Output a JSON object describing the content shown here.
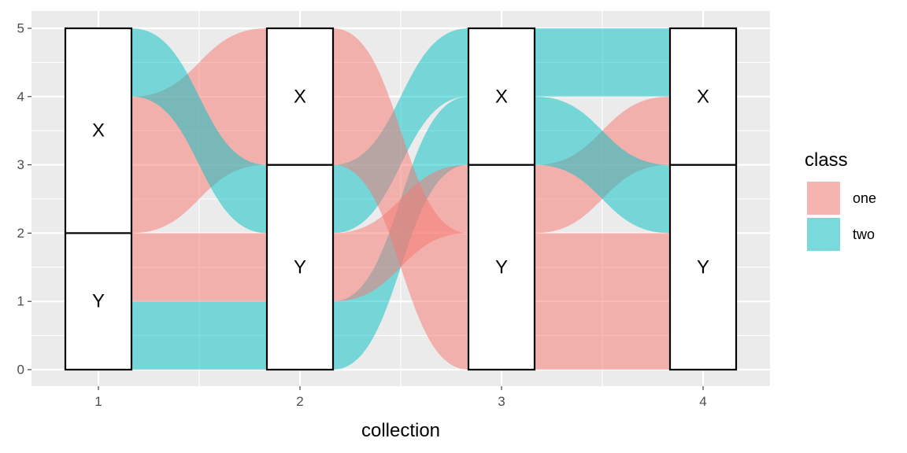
{
  "chart_data": {
    "type": "alluvial",
    "title": "",
    "xlabel": "collection",
    "ylabel": "",
    "x_categories": [
      "1",
      "2",
      "3",
      "4"
    ],
    "y_ticks": [
      0,
      1,
      2,
      3,
      4,
      5
    ],
    "ylim": [
      0,
      5
    ],
    "grid": true,
    "legend": {
      "title": "class",
      "position": "right",
      "entries": [
        {
          "name": "one",
          "color": "#F8766D"
        },
        {
          "name": "two",
          "color": "#00BFC4"
        }
      ]
    },
    "strata": [
      {
        "collection": "1",
        "items": [
          {
            "label": "Y",
            "from": 0,
            "to": 2
          },
          {
            "label": "X",
            "from": 2,
            "to": 5
          }
        ]
      },
      {
        "collection": "2",
        "items": [
          {
            "label": "Y",
            "from": 0,
            "to": 3
          },
          {
            "label": "X",
            "from": 3,
            "to": 5
          }
        ]
      },
      {
        "collection": "3",
        "items": [
          {
            "label": "Y",
            "from": 0,
            "to": 3
          },
          {
            "label": "X",
            "from": 3,
            "to": 5
          }
        ]
      },
      {
        "collection": "4",
        "items": [
          {
            "label": "Y",
            "from": 0,
            "to": 3
          },
          {
            "label": "X",
            "from": 3,
            "to": 5
          }
        ]
      }
    ],
    "flows": [
      {
        "from_collection": "1",
        "to_collection": "2",
        "class": "two",
        "left": [
          0,
          1
        ],
        "right": [
          0,
          1
        ]
      },
      {
        "from_collection": "1",
        "to_collection": "2",
        "class": "one",
        "left": [
          1,
          2
        ],
        "right": [
          1,
          2
        ]
      },
      {
        "from_collection": "1",
        "to_collection": "2",
        "class": "one",
        "left": [
          2,
          4
        ],
        "right": [
          3,
          5
        ]
      },
      {
        "from_collection": "1",
        "to_collection": "2",
        "class": "two",
        "left": [
          4,
          5
        ],
        "right": [
          2,
          3
        ]
      },
      {
        "from_collection": "2",
        "to_collection": "3",
        "class": "two",
        "left": [
          0,
          1
        ],
        "right": [
          3,
          4
        ]
      },
      {
        "from_collection": "2",
        "to_collection": "3",
        "class": "one",
        "left": [
          1,
          2
        ],
        "right": [
          2,
          3
        ]
      },
      {
        "from_collection": "2",
        "to_collection": "3",
        "class": "two",
        "left": [
          2,
          3
        ],
        "right": [
          4,
          5
        ]
      },
      {
        "from_collection": "2",
        "to_collection": "3",
        "class": "one",
        "left": [
          3,
          5
        ],
        "right": [
          0,
          2
        ]
      },
      {
        "from_collection": "3",
        "to_collection": "4",
        "class": "one",
        "left": [
          0,
          2
        ],
        "right": [
          0,
          2
        ]
      },
      {
        "from_collection": "3",
        "to_collection": "4",
        "class": "one",
        "left": [
          2,
          3
        ],
        "right": [
          3,
          4
        ]
      },
      {
        "from_collection": "3",
        "to_collection": "4",
        "class": "two",
        "left": [
          3,
          4
        ],
        "right": [
          2,
          3
        ]
      },
      {
        "from_collection": "3",
        "to_collection": "4",
        "class": "two",
        "left": [
          4,
          5
        ],
        "right": [
          4,
          5
        ]
      }
    ]
  }
}
